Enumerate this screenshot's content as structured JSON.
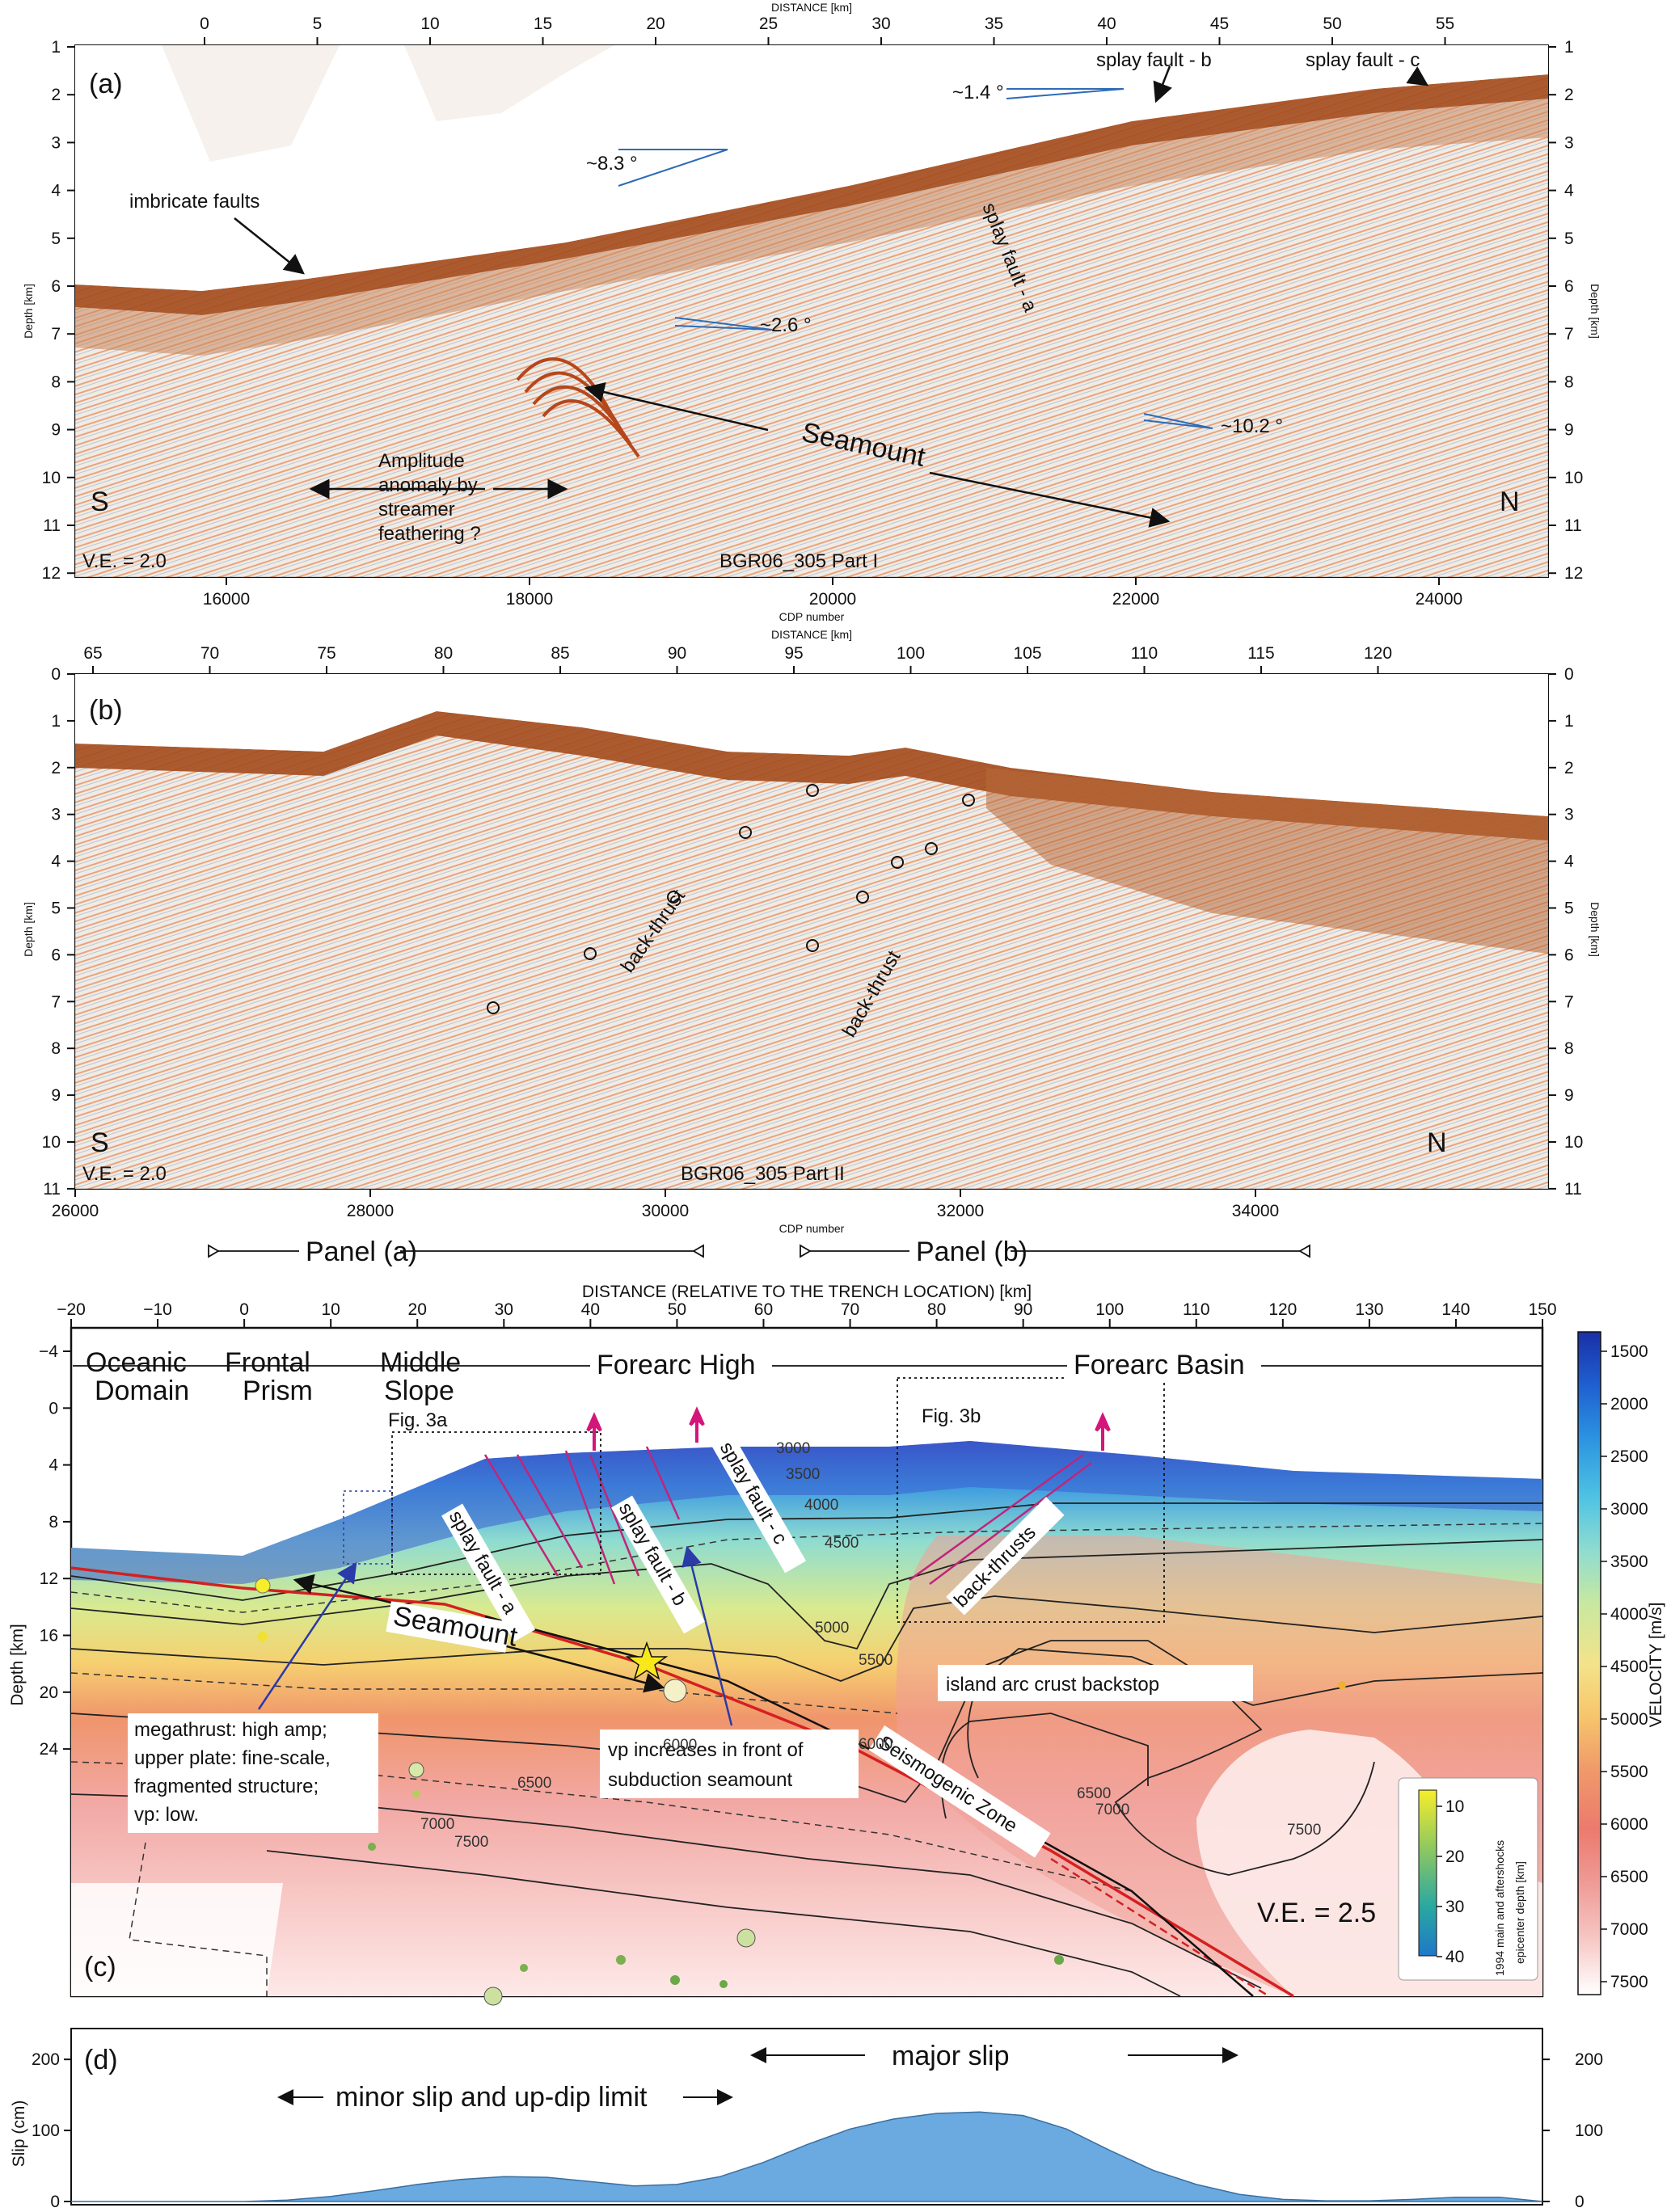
{
  "panel_a": {
    "label": "(a)",
    "top_axis_title": "DISTANCE [km]",
    "bottom_axis_title": "CDP number",
    "depth_axis_title": "Depth [km]",
    "distance_ticks": [
      "0",
      "5",
      "10",
      "15",
      "20",
      "25",
      "30",
      "35",
      "40",
      "45",
      "50",
      "55"
    ],
    "cdp_ticks": [
      "16000",
      "18000",
      "20000",
      "22000",
      "24000"
    ],
    "depth_ticks": [
      "1",
      "2",
      "3",
      "4",
      "5",
      "6",
      "7",
      "8",
      "9",
      "10",
      "11",
      "12"
    ],
    "annotations": {
      "imbricate": "imbricate faults",
      "angle_83": "~8.3 °",
      "angle_14": "~1.4 °",
      "angle_26": "~2.6 °",
      "angle_102": "~10.2 °",
      "splay_b": "splay fault - b",
      "splay_c": "splay fault - c",
      "splay_a": "splay fault - a",
      "seamount": "Seamount",
      "amp1": "Amplitude",
      "amp2": "anomaly by",
      "amp3": "streamer",
      "amp4": "feathering ?",
      "south": "S",
      "north": "N",
      "ve": "V.E. = 2.0",
      "line": "BGR06_305 Part I"
    }
  },
  "panel_b": {
    "label": "(b)",
    "top_axis_title": "DISTANCE [km]",
    "bottom_axis_title": "CDP number",
    "depth_axis_title": "Depth [km]",
    "distance_ticks": [
      "65",
      "70",
      "75",
      "80",
      "85",
      "90",
      "95",
      "100",
      "105",
      "110",
      "115",
      "120"
    ],
    "cdp_ticks": [
      "26000",
      "28000",
      "30000",
      "32000",
      "34000"
    ],
    "depth_ticks": [
      "0",
      "1",
      "2",
      "3",
      "4",
      "5",
      "6",
      "7",
      "8",
      "9",
      "10",
      "11"
    ],
    "annotations": {
      "backthrust1": "back-thrust",
      "backthrust2": "back-thrust",
      "south": "S",
      "north": "N",
      "ve": "V.E. = 2.0",
      "line": "BGR06_305 Part II"
    },
    "panel_ref_a": "Panel (a)",
    "panel_ref_b": "Panel (b)"
  },
  "panel_c": {
    "label": "(c)",
    "top_axis_title": "DISTANCE (RELATIVE TO THE TRENCH LOCATION) [km]",
    "distance_ticks": [
      "−20",
      "−10",
      "0",
      "10",
      "20",
      "30",
      "40",
      "50",
      "60",
      "70",
      "80",
      "90",
      "100",
      "110",
      "120",
      "130",
      "140",
      "150"
    ],
    "depth_axis_title": "Depth [km]",
    "depth_ticks": [
      "−4",
      "0",
      "4",
      "8",
      "12",
      "16",
      "20",
      "24"
    ],
    "domains": {
      "oceanic_1": "Oceanic",
      "oceanic_2": "Domain",
      "frontal_1": "Frontal",
      "frontal_2": "Prism",
      "middle_1": "Middle",
      "middle_2": "Slope",
      "forearc_high": "Forearc High",
      "forearc_basin": "Forearc Basin"
    },
    "annotations": {
      "fig3a": "Fig. 3a",
      "fig3b": "Fig. 3b",
      "splay_a": "splay fault - a",
      "splay_b": "splay fault - b",
      "splay_c": "splay fault - c",
      "backthrusts": "back-thrusts",
      "seamount": "Seamount",
      "megathrust_1": "megathrust: high amp;",
      "megathrust_2": "upper plate: fine-scale,",
      "megathrust_3": "fragmented structure;",
      "megathrust_4": "vp: low.",
      "vp_1": "vp increases in front of",
      "vp_2": "subduction seamount",
      "seismogenic": "Seismogenic Zone",
      "island_arc": "island arc crust backstop",
      "ve": "V.E. = 2.5"
    },
    "contour_labels": [
      "3000",
      "3500",
      "4000",
      "4500",
      "5000",
      "5500",
      "6000",
      "6000",
      "6500",
      "6500",
      "7000",
      "7000",
      "7500",
      "7500"
    ],
    "colorbar": {
      "title": "VELOCITY [m/s]",
      "ticks": [
        "1500",
        "2000",
        "2500",
        "3000",
        "3500",
        "4000",
        "4500",
        "5000",
        "5500",
        "6000",
        "6500",
        "7000",
        "7500"
      ],
      "colors": [
        "#1a2fa8",
        "#1f5fd0",
        "#2b93e0",
        "#4fc3e3",
        "#8fdcd0",
        "#c8e8a0",
        "#f3e38a",
        "#f7c56c",
        "#f09a6a",
        "#ec7a6e",
        "#ef9a95",
        "#f6c3c0",
        "#fbe6e4",
        "#ffffff"
      ]
    },
    "epicenter_scale": {
      "title_1": "1994 main and aftershocks",
      "title_2": "epicenter depth [km]",
      "ticks": [
        "10",
        "20",
        "30",
        "40"
      ]
    }
  },
  "panel_d": {
    "label": "(d)",
    "y_axis_title": "Slip (cm)",
    "y_ticks": [
      "0",
      "100",
      "200"
    ],
    "major": "major slip",
    "minor": "minor slip and up-dip limit",
    "fill_color": "#6aaae0"
  },
  "chart_data": {
    "type": "area",
    "title": "",
    "xlabel": "DISTANCE (RELATIVE TO THE TRENCH LOCATION) [km]",
    "ylabel": "Slip (cm)",
    "xlim": [
      -20,
      150
    ],
    "ylim": [
      0,
      240
    ],
    "x": [
      -20,
      0,
      5,
      10,
      15,
      20,
      25,
      30,
      35,
      40,
      45,
      50,
      55,
      60,
      65,
      70,
      75,
      80,
      85,
      90,
      95,
      100,
      105,
      110,
      115,
      120,
      125,
      130,
      135,
      140,
      145,
      150
    ],
    "series": [
      {
        "values": [
          0,
          0,
          2,
          7,
          15,
          24,
          31,
          35,
          34,
          28,
          22,
          24,
          35,
          55,
          80,
          102,
          116,
          124,
          126,
          121,
          102,
          72,
          44,
          24,
          10,
          3,
          1,
          1,
          3,
          6,
          6,
          0
        ]
      }
    ]
  }
}
